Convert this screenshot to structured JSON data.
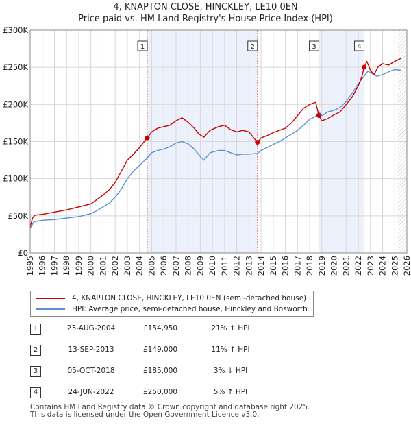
{
  "title": "4, KNAPTON CLOSE, HINCKLEY, LE10 0EN",
  "subtitle": "Price paid vs. HM Land Registry's House Price Index (HPI)",
  "legend": {
    "property_label": "4, KNAPTON CLOSE, HINCKLEY, LE10 0EN (semi-detached house)",
    "hpi_label": "HPI: Average price, semi-detached house, Hinckley and Bosworth"
  },
  "colors": {
    "property": "#cc0000",
    "hpi": "#5b8fd0",
    "shade": "#dde6f8",
    "marker_line": "#e06070",
    "grid": "#d8d8d8"
  },
  "transactions": [
    {
      "num": "1",
      "date": "23-AUG-2004",
      "price": "£154,950",
      "hpi": "21% ↑ HPI"
    },
    {
      "num": "2",
      "date": "13-SEP-2013",
      "price": "£149,000",
      "hpi": "11% ↑ HPI"
    },
    {
      "num": "3",
      "date": "05-OCT-2018",
      "price": "£185,000",
      "hpi": "3% ↓ HPI"
    },
    {
      "num": "4",
      "date": "24-JUN-2022",
      "price": "£250,000",
      "hpi": "5% ↑ HPI"
    }
  ],
  "footer": {
    "line1": "Contains HM Land Registry data © Crown copyright and database right 2025.",
    "line2": "This data is licensed under the Open Government Licence v3.0."
  },
  "chart_data": {
    "type": "line",
    "xlim": [
      1995,
      2026
    ],
    "ylim": [
      0,
      300000
    ],
    "x_ticks": [
      1995,
      1996,
      1997,
      1998,
      1999,
      2000,
      2001,
      2002,
      2003,
      2004,
      2005,
      2006,
      2007,
      2008,
      2009,
      2010,
      2011,
      2012,
      2013,
      2014,
      2015,
      2016,
      2017,
      2018,
      2019,
      2020,
      2021,
      2022,
      2023,
      2024,
      2025,
      2026
    ],
    "x_tick_labels": [
      "1995",
      "1996",
      "1997",
      "1998",
      "1999",
      "2000",
      "2001",
      "2002",
      "2003",
      "2004",
      "2005",
      "2006",
      "2007",
      "2008",
      "2009",
      "2010",
      "2011",
      "2012",
      "2013",
      "2014",
      "2015",
      "2016",
      "2017",
      "2018",
      "2019",
      "2020",
      "2021",
      "2022",
      "2023",
      "2024",
      "2025",
      "2026"
    ],
    "y_ticks": [
      0,
      50000,
      100000,
      150000,
      200000,
      250000,
      300000
    ],
    "y_tick_labels": [
      "£0",
      "£50K",
      "£100K",
      "£150K",
      "£200K",
      "£250K",
      "£300K"
    ],
    "shaded_ranges": [
      [
        2004.64,
        2013.7
      ],
      [
        2018.76,
        2022.48
      ]
    ],
    "hatched_from": 2025.25,
    "sales": [
      {
        "label": "1",
        "x": 2004.64,
        "y": 154950
      },
      {
        "label": "2",
        "x": 2013.7,
        "y": 149000
      },
      {
        "label": "3",
        "x": 2018.76,
        "y": 185000
      },
      {
        "label": "4",
        "x": 2022.48,
        "y": 250000
      }
    ],
    "series": [
      {
        "name": "4, KNAPTON CLOSE, HINCKLEY, LE10 0EN (semi-detached house)",
        "x": [
          1995.0,
          1995.2,
          1995.4,
          1996,
          1997,
          1998,
          1999,
          2000,
          2000.5,
          2001,
          2001.5,
          2002,
          2002.5,
          2003,
          2003.5,
          2004,
          2004.64,
          2005,
          2005.5,
          2006,
          2006.5,
          2007,
          2007.5,
          2008,
          2008.5,
          2008.9,
          2009.3,
          2009.8,
          2010.5,
          2011,
          2011.5,
          2012,
          2012.5,
          2013,
          2013.7,
          2014,
          2014.5,
          2015,
          2015.5,
          2016,
          2016.5,
          2017,
          2017.5,
          2018,
          2018.5,
          2018.76,
          2019,
          2019.5,
          2020,
          2020.5,
          2021,
          2021.5,
          2022,
          2022.3,
          2022.48,
          2022.7,
          2023,
          2023.3,
          2023.6,
          2024,
          2024.5,
          2025,
          2025.5
        ],
        "y": [
          35000,
          47000,
          51000,
          52000,
          55000,
          58000,
          62000,
          66000,
          72000,
          78000,
          85000,
          95000,
          110000,
          125000,
          133000,
          142000,
          154950,
          163000,
          168000,
          170000,
          172000,
          178000,
          182000,
          176000,
          168000,
          160000,
          156000,
          165000,
          170000,
          172000,
          166000,
          163000,
          165000,
          163000,
          149000,
          155000,
          158000,
          162000,
          165000,
          168000,
          175000,
          185000,
          195000,
          200000,
          203000,
          185000,
          178000,
          181000,
          186000,
          190000,
          200000,
          210000,
          225000,
          238000,
          250000,
          258000,
          246000,
          240000,
          250000,
          255000,
          253000,
          258000,
          262000
        ]
      },
      {
        "name": "HPI: Average price, semi-detached house, Hinckley and Bosworth",
        "x": [
          1995.0,
          1995.3,
          1996,
          1997,
          1998,
          1999,
          2000,
          2000.5,
          2001,
          2001.5,
          2002,
          2002.5,
          2003,
          2003.5,
          2004,
          2004.64,
          2005,
          2005.5,
          2006,
          2006.5,
          2007,
          2007.5,
          2008,
          2008.5,
          2009,
          2009.3,
          2009.8,
          2010.5,
          2011,
          2011.5,
          2012,
          2012.5,
          2013,
          2013.7,
          2014,
          2014.5,
          2015,
          2015.5,
          2016,
          2016.5,
          2017,
          2017.5,
          2018,
          2018.5,
          2018.76,
          2019,
          2019.5,
          2020,
          2020.5,
          2021,
          2021.5,
          2022,
          2022.48,
          2022.8,
          2023,
          2023.5,
          2024,
          2024.5,
          2025,
          2025.5
        ],
        "y": [
          33000,
          42000,
          44000,
          45000,
          47000,
          49000,
          53000,
          57000,
          62000,
          67000,
          75000,
          86000,
          100000,
          110000,
          118000,
          128000,
          135000,
          138000,
          140000,
          143000,
          148000,
          150000,
          147000,
          140000,
          130000,
          125000,
          135000,
          138000,
          138000,
          135000,
          132000,
          133000,
          133000,
          134000,
          138000,
          142000,
          146000,
          150000,
          155000,
          160000,
          165000,
          172000,
          180000,
          184000,
          190000,
          185000,
          190000,
          192000,
          196000,
          204000,
          215000,
          228000,
          238000,
          245000,
          243000,
          238000,
          240000,
          244000,
          247000,
          246000
        ]
      }
    ]
  }
}
